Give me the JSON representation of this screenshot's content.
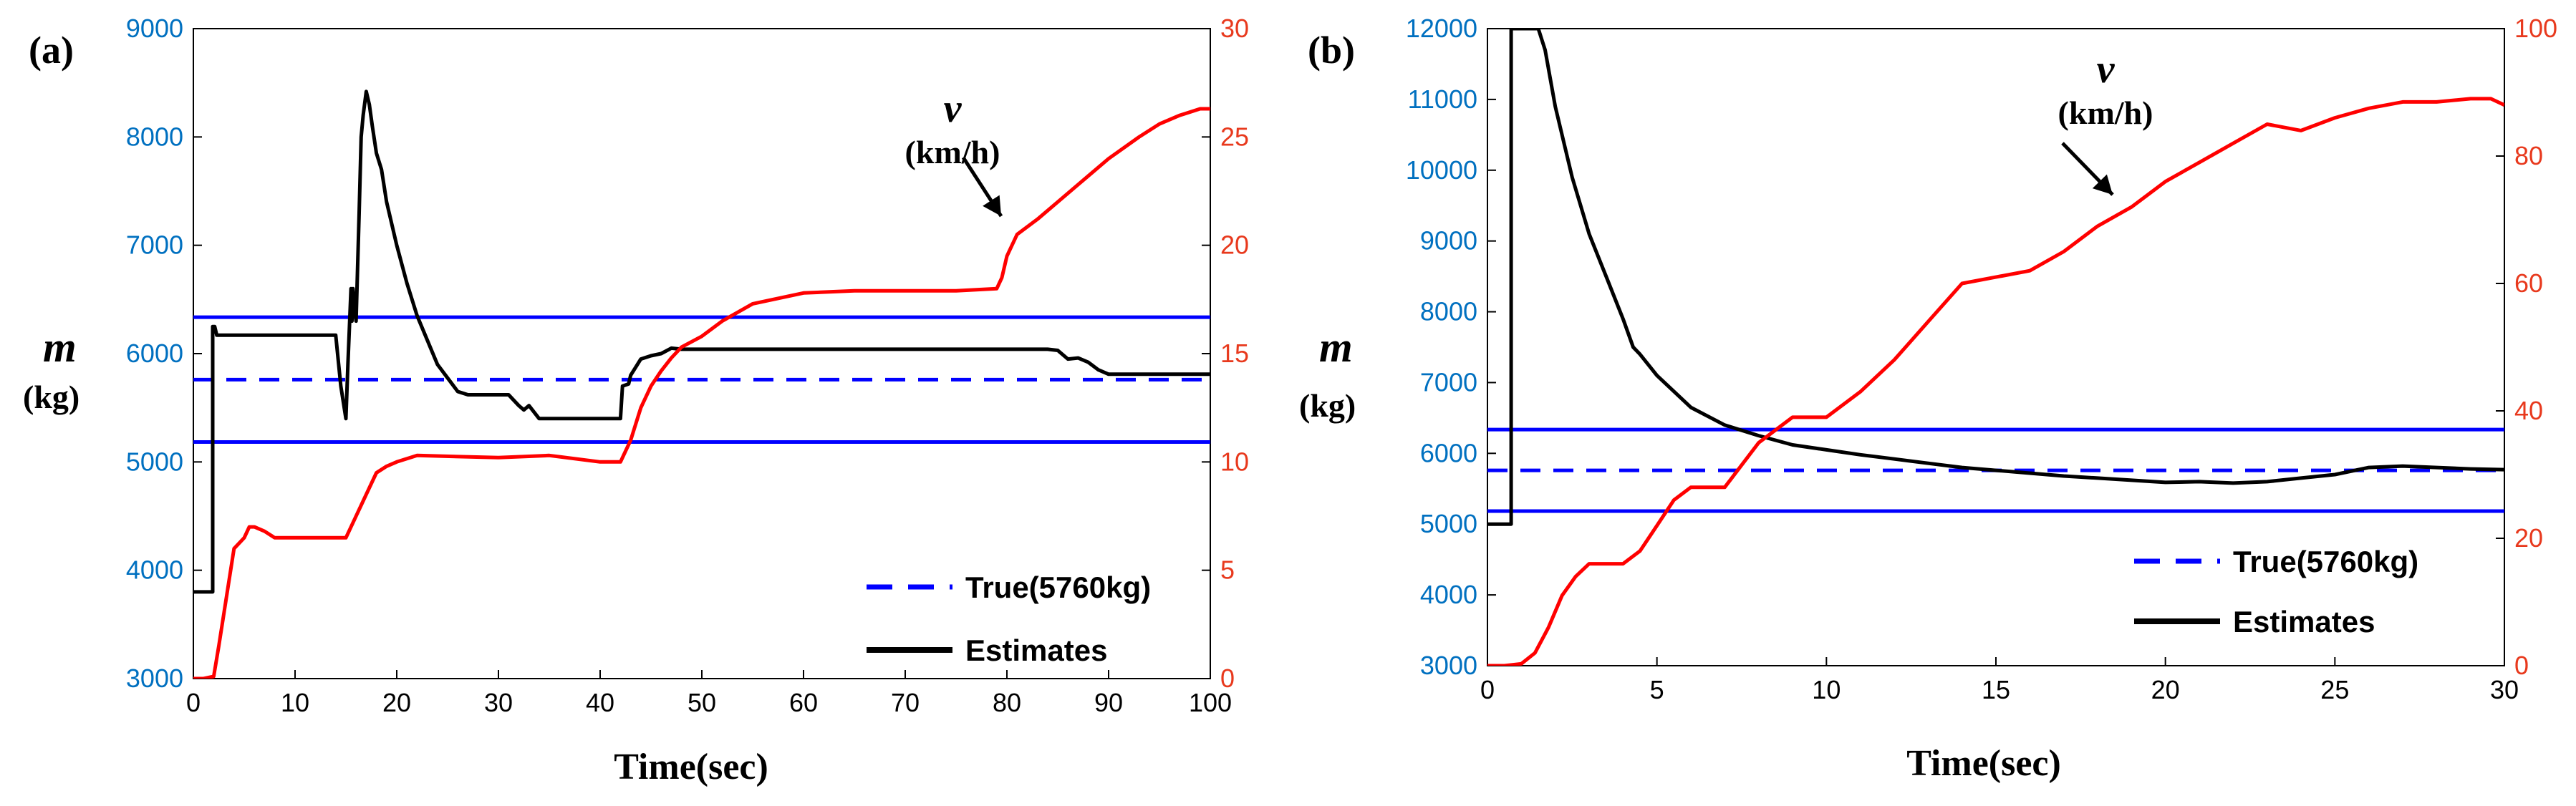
{
  "figure": {
    "xlabel": "Time(sec)",
    "left_ylabel": "m",
    "left_yunit": "(kg)",
    "right_series_label": "v",
    "right_series_unit": "(km/h)",
    "legend": {
      "true_label": "True(5760kg)",
      "estimates_label": "Estimates"
    },
    "colors": {
      "axis_left": "#0070c0",
      "axis_right": "#e8391d",
      "true": "#0000ff",
      "estimate": "#000000",
      "speed": "#ff0000"
    }
  },
  "chart_data": [
    {
      "type": "line",
      "panel_label": "(a)",
      "xlim": [
        0,
        100
      ],
      "xticks": [
        0,
        10,
        20,
        30,
        40,
        50,
        60,
        70,
        80,
        90,
        100
      ],
      "ylim_left": [
        3000,
        9000
      ],
      "yticks_left": [
        3000,
        4000,
        5000,
        6000,
        7000,
        8000,
        9000
      ],
      "ylim_right": [
        0,
        30
      ],
      "yticks_right": [
        0,
        5,
        10,
        15,
        20,
        25,
        30
      ],
      "true_mass": 5760,
      "bounds": [
        5184,
        6336
      ],
      "annotation_at": [
        80,
        19.5
      ],
      "series": [
        {
          "name": "Estimates",
          "axis": "left",
          "x": [
            0,
            1.9,
            1.9,
            2.1,
            2.3,
            2.3,
            14,
            14.5,
            15,
            15.2,
            15.5,
            15.6,
            15.7,
            16,
            16.3,
            16.5,
            16.7,
            17,
            17.3,
            17.6,
            18,
            18.5,
            19,
            20,
            21,
            22,
            24,
            26,
            27,
            29,
            31,
            32,
            32.5,
            33,
            34,
            35,
            42,
            42.2,
            42.8,
            43,
            44,
            45,
            46,
            47,
            48,
            50,
            60,
            70,
            80,
            84,
            85,
            86,
            87,
            88,
            89,
            90,
            100
          ],
          "y": [
            3800,
            3800,
            6250,
            6250,
            6170,
            6170,
            6170,
            5700,
            5400,
            5900,
            6600,
            6300,
            6600,
            6300,
            7300,
            8000,
            8200,
            8420,
            8300,
            8100,
            7850,
            7700,
            7400,
            7000,
            6650,
            6350,
            5900,
            5650,
            5620,
            5620,
            5620,
            5520,
            5480,
            5520,
            5400,
            5400,
            5400,
            5700,
            5720,
            5800,
            5950,
            5980,
            6000,
            6050,
            6040,
            6040,
            6040,
            6040,
            6040,
            6040,
            6030,
            5950,
            5960,
            5920,
            5850,
            5810,
            5810
          ]
        },
        {
          "name": "v (km/h)",
          "axis": "right",
          "x": [
            0,
            1,
            2,
            2.5,
            3,
            3.5,
            4,
            5,
            5.5,
            6,
            7,
            8,
            10,
            14,
            15,
            16,
            17,
            18,
            19,
            20,
            22,
            30,
            35,
            40,
            42,
            43,
            44,
            45,
            46,
            47,
            48,
            50,
            52,
            55,
            60,
            65,
            70,
            75,
            79,
            79.5,
            80,
            81,
            83,
            85,
            87,
            90,
            93,
            95,
            97,
            99,
            100
          ],
          "y": [
            0,
            0,
            0.1,
            1.5,
            3,
            4.5,
            6,
            6.5,
            7,
            7,
            6.8,
            6.5,
            6.5,
            6.5,
            6.5,
            7.5,
            8.5,
            9.5,
            9.8,
            10,
            10.3,
            10.2,
            10.3,
            10,
            10,
            11,
            12.5,
            13.5,
            14.2,
            14.8,
            15.3,
            15.8,
            16.5,
            17.3,
            17.8,
            17.9,
            17.9,
            17.9,
            18,
            18.5,
            19.5,
            20.5,
            21.2,
            22,
            22.8,
            24,
            25,
            25.6,
            26,
            26.3,
            26.3
          ]
        }
      ]
    },
    {
      "type": "line",
      "panel_label": "(b)",
      "xlim": [
        0,
        30
      ],
      "xticks": [
        0,
        5,
        10,
        15,
        20,
        25,
        30
      ],
      "ylim_left": [
        3000,
        12000
      ],
      "yticks_left": [
        3000,
        4000,
        5000,
        6000,
        7000,
        8000,
        9000,
        10000,
        11000,
        12000
      ],
      "ylim_right": [
        0,
        100
      ],
      "yticks_right": [
        0,
        20,
        40,
        60,
        80,
        100
      ],
      "true_mass": 5760,
      "bounds": [
        5184,
        6336
      ],
      "annotation_at": [
        19.8,
        75
      ],
      "series": [
        {
          "name": "Estimates",
          "axis": "left",
          "x": [
            0,
            0.7,
            0.7,
            0.9,
            1.1,
            1.3,
            1.5,
            1.7,
            2,
            2.5,
            3,
            3.5,
            4,
            4.3,
            4.5,
            5,
            6,
            7,
            8,
            9,
            10,
            11,
            12,
            13,
            14,
            15,
            16,
            17,
            18,
            19,
            20,
            21,
            22,
            23,
            24,
            25,
            26,
            27,
            28,
            29,
            30
          ],
          "y": [
            5000,
            5000,
            12000,
            12000,
            12000,
            12000,
            12000,
            11700,
            10900,
            9900,
            9100,
            8500,
            7900,
            7500,
            7400,
            7100,
            6650,
            6400,
            6250,
            6120,
            6050,
            5980,
            5920,
            5860,
            5800,
            5760,
            5720,
            5680,
            5650,
            5620,
            5590,
            5600,
            5580,
            5600,
            5650,
            5700,
            5800,
            5820,
            5800,
            5780,
            5770
          ]
        },
        {
          "name": "v (km/h)",
          "axis": "right",
          "x": [
            0,
            0.5,
            1,
            1.4,
            1.8,
            2.2,
            2.6,
            3,
            3.5,
            4,
            4.5,
            5,
            5.5,
            6,
            7,
            8,
            9,
            10,
            11,
            12,
            13,
            14,
            15,
            16,
            17,
            18,
            19,
            20,
            21,
            22,
            23,
            24,
            25,
            26,
            27,
            28,
            29,
            29.6,
            30
          ],
          "y": [
            0,
            0,
            0.3,
            2,
            6,
            11,
            14,
            16,
            16,
            16,
            18,
            22,
            26,
            28,
            28,
            35,
            39,
            39,
            43,
            48,
            54,
            60,
            61,
            62,
            65,
            69,
            72,
            76,
            79,
            82,
            85,
            84,
            86,
            87.5,
            88.5,
            88.5,
            89,
            89,
            88
          ]
        }
      ]
    }
  ]
}
